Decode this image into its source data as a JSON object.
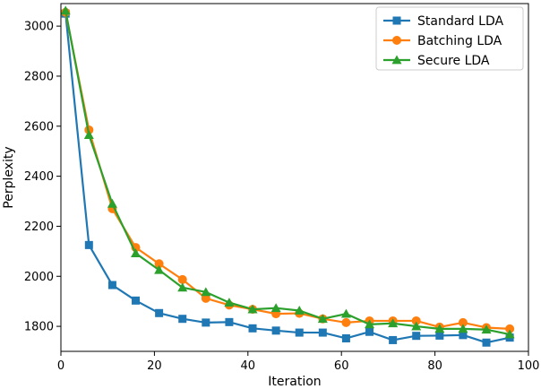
{
  "chart_data": {
    "type": "line",
    "title": "",
    "xlabel": "Iteration",
    "ylabel": "Perplexity",
    "xlim": [
      0,
      100
    ],
    "ylim": [
      1700,
      3090
    ],
    "xticks": [
      0,
      20,
      40,
      60,
      80,
      100
    ],
    "yticks": [
      1800,
      2000,
      2200,
      2400,
      2600,
      2800,
      3000
    ],
    "grid": false,
    "legend_position": "top-right",
    "x": [
      1,
      6,
      11,
      16,
      21,
      26,
      31,
      36,
      41,
      46,
      51,
      56,
      61,
      66,
      71,
      76,
      81,
      86,
      91,
      96
    ],
    "series": [
      {
        "name": "Standard LDA",
        "color": "#1f77b4",
        "marker": "square",
        "values": [
          3050,
          2125,
          1965,
          1903,
          1853,
          1830,
          1815,
          1817,
          1792,
          1783,
          1775,
          1775,
          1752,
          1778,
          1745,
          1762,
          1763,
          1765,
          1735,
          1755
        ]
      },
      {
        "name": "Batching LDA",
        "color": "#ff7f0e",
        "marker": "circle",
        "values": [
          3055,
          2585,
          2270,
          2115,
          2050,
          1987,
          1912,
          1885,
          1868,
          1850,
          1852,
          1830,
          1815,
          1822,
          1822,
          1822,
          1797,
          1815,
          1795,
          1790
        ]
      },
      {
        "name": "Secure LDA",
        "color": "#2ca02c",
        "marker": "triangle",
        "values": [
          3062,
          2565,
          2290,
          2092,
          2025,
          1955,
          1937,
          1895,
          1868,
          1873,
          1863,
          1830,
          1850,
          1808,
          1812,
          1800,
          1790,
          1790,
          1787,
          1768
        ]
      }
    ]
  }
}
